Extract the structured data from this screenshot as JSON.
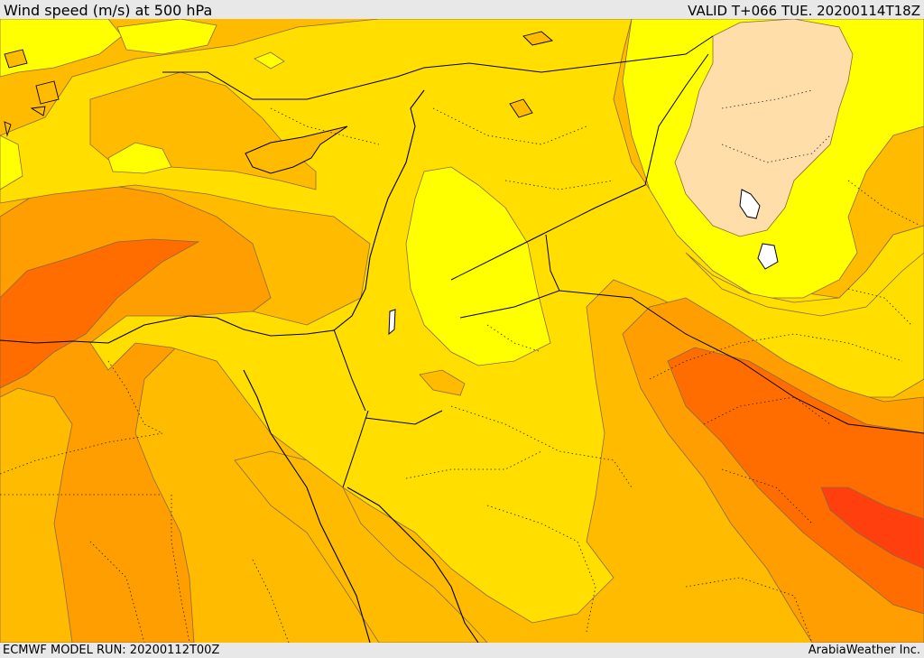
{
  "header": {
    "title": "Wind speed (m/s) at 500 hPa",
    "valid": "VALID T+066 TUE. 20200114T18Z"
  },
  "footer": {
    "model_run": "ECMWF MODEL RUN: 20200112T00Z",
    "credit": "ArabiaWeather Inc."
  },
  "colors": {
    "band_1": "#ffff00",
    "band_2": "#ffde00",
    "band_3": "#ffbb00",
    "band_4": "#ff9e00",
    "band_5": "#ff6c00",
    "band_6": "#ff3f0e",
    "calm": "#ffdeaa",
    "coastline": "#000000",
    "border": "#000000"
  }
}
